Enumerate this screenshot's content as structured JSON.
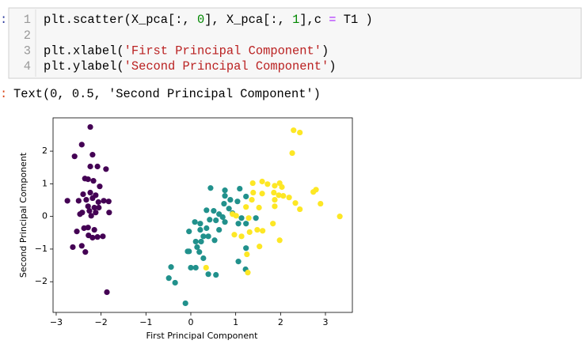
{
  "cell": {
    "prompt": ":",
    "line_numbers": [
      "1",
      "2",
      "3",
      "4"
    ],
    "lines": [
      [
        {
          "text": "plt.scatter(X_pca[:, ",
          "color": "#000000"
        },
        {
          "text": "0",
          "color": "#008800"
        },
        {
          "text": "], X_pca[:, ",
          "color": "#000000"
        },
        {
          "text": "1",
          "color": "#008800"
        },
        {
          "text": "],c ",
          "color": "#000000"
        },
        {
          "text": "=",
          "color": "#aa22ff"
        },
        {
          "text": " T1 )",
          "color": "#000000"
        }
      ],
      [],
      [
        {
          "text": "plt.xlabel(",
          "color": "#000000"
        },
        {
          "text": "'First Principal Component'",
          "color": "#ba2121"
        },
        {
          "text": ")",
          "color": "#000000"
        }
      ],
      [
        {
          "text": "plt.ylabel(",
          "color": "#000000"
        },
        {
          "text": "'Second Principal Component'",
          "color": "#ba2121"
        },
        {
          "text": ")",
          "color": "#000000"
        }
      ]
    ]
  },
  "output": {
    "prompt": ":",
    "text": "Text(0, 0.5, 'Second Principal Component')"
  },
  "chart_data": {
    "type": "scatter",
    "xlabel": "First Principal Component",
    "ylabel": "Second Principal Component",
    "xlim": [
      -3.07,
      3.6
    ],
    "ylim": [
      -2.94,
      3.02
    ],
    "xticks": [
      {
        "value": -3,
        "label": "−3"
      },
      {
        "value": -2,
        "label": "−2"
      },
      {
        "value": -1,
        "label": "−1"
      },
      0,
      1,
      2,
      3
    ],
    "yticks": [
      {
        "value": -2,
        "label": "−2"
      },
      {
        "value": -1,
        "label": "−1"
      },
      0,
      1,
      2
    ],
    "grid": false,
    "series": [
      {
        "color": "#440154",
        "x": [
          -2.24,
          -2.43,
          -2.59,
          -2.19,
          -2.24,
          -2.08,
          -1.89,
          -2.36,
          -2.29,
          -2.17,
          -2.03,
          -2.4,
          -2.24,
          -2.12,
          -2.75,
          -2.5,
          -2.33,
          -2.19,
          -2.06,
          -1.94,
          -1.83,
          -2.29,
          -2.15,
          -2.05,
          -2.42,
          -2.26,
          -2.12,
          -2.47,
          -1.82,
          -2.22,
          -2.54,
          -2.38,
          -2.29,
          -2.15,
          -2.28,
          -2.08,
          -1.96,
          -2.19,
          -2.63,
          -2.43,
          -2.35,
          -1.87
        ],
        "values": [
          2.74,
          2.2,
          1.84,
          1.89,
          1.53,
          1.53,
          1.45,
          1.16,
          1.14,
          1.09,
          0.92,
          0.68,
          0.73,
          0.65,
          0.48,
          0.48,
          0.51,
          0.56,
          0.44,
          0.48,
          0.46,
          0.31,
          0.27,
          0.27,
          0.12,
          0.17,
          0.12,
          0.07,
          0.12,
          0.02,
          -0.46,
          -0.36,
          -0.34,
          -0.41,
          -0.58,
          -0.63,
          -0.61,
          -0.65,
          -0.94,
          -0.9,
          -1.09,
          -2.32
        ]
      },
      {
        "color": "#21918c",
        "x": [
          0.44,
          0.76,
          1.09,
          0.76,
          0.88,
          1.04,
          1.23,
          0.74,
          0.85,
          0.35,
          0.51,
          0.63,
          0.71,
          0.93,
          1.13,
          1.45,
          0.09,
          0.21,
          0.42,
          0.56,
          0.76,
          1.06,
          1.23,
          -0.04,
          0.21,
          0.35,
          0.63,
          0.28,
          0.39,
          0.11,
          0.23,
          0.53,
          0.14,
          -0.04,
          -0.07,
          0.19,
          0.28,
          1.23,
          1.06,
          0.0,
          0.11,
          -0.44,
          -0.49,
          -0.35,
          0.39,
          0.56,
          1.22,
          -0.12
        ],
        "values": [
          0.87,
          0.8,
          0.85,
          0.63,
          0.51,
          0.46,
          0.61,
          0.39,
          0.24,
          0.19,
          0.17,
          0.07,
          -0.02,
          0.1,
          -0.05,
          -0.05,
          -0.17,
          -0.22,
          -0.1,
          -0.12,
          -0.17,
          -0.22,
          -0.22,
          -0.46,
          -0.41,
          -0.36,
          -0.41,
          -0.61,
          -0.61,
          -0.77,
          -0.77,
          -0.73,
          -0.94,
          -1.07,
          -1.07,
          -1.09,
          -1.28,
          -0.97,
          -1.38,
          -1.57,
          -1.57,
          -1.55,
          -1.89,
          -2.03,
          -1.77,
          -1.79,
          -1.62,
          -2.66
        ]
      },
      {
        "color": "#fde725",
        "x": [
          2.29,
          2.43,
          2.26,
          1.38,
          1.59,
          1.71,
          1.87,
          1.98,
          2.03,
          1.39,
          1.59,
          1.85,
          1.96,
          2.06,
          2.19,
          2.79,
          2.73,
          1.36,
          1.87,
          2.33,
          2.89,
          1.52,
          1.87,
          2.43,
          1.23,
          0.93,
          1.01,
          3.32,
          1.29,
          1.83,
          1.48,
          1.6,
          1.31,
          0.97,
          1.13,
          1.98,
          1.53,
          1.25,
          0.34,
          1.27
        ],
        "values": [
          2.64,
          2.57,
          1.94,
          1.02,
          1.07,
          0.99,
          0.94,
          1.02,
          0.9,
          0.73,
          0.7,
          0.73,
          0.65,
          0.63,
          0.58,
          0.82,
          0.75,
          0.51,
          0.51,
          0.41,
          0.39,
          0.27,
          0.31,
          0.22,
          0.29,
          0.07,
          0.02,
          0.0,
          -0.05,
          -0.22,
          -0.41,
          -0.44,
          -0.48,
          -0.56,
          -0.61,
          -0.73,
          -0.92,
          -1.16,
          -1.57,
          -1.72
        ]
      }
    ]
  }
}
